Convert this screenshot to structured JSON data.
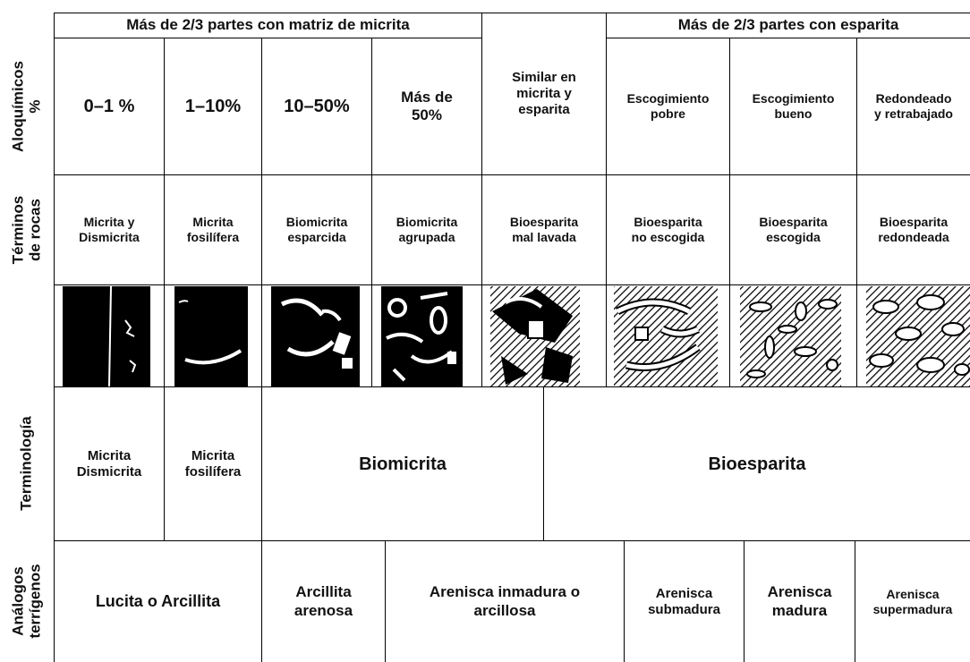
{
  "header": {
    "groups": [
      {
        "lines": [
          "Más de 2/3 partes con matriz de micrita"
        ]
      },
      {
        "lines": [
          "Más de 2/3 partes con esparita"
        ]
      }
    ]
  },
  "rows": [
    {
      "label": [
        "Aloquímicos",
        "%"
      ],
      "cells": [
        {
          "lines": [
            "0–1 %"
          ]
        },
        {
          "lines": [
            "1–10%"
          ]
        },
        {
          "lines": [
            "10–50%"
          ]
        },
        {
          "lines": [
            "Más de",
            "50%"
          ]
        },
        {
          "lines": [
            "Similar en",
            "micrita y",
            "esparita"
          ]
        },
        {
          "lines": [
            "Escogimiento",
            "pobre"
          ]
        },
        {
          "lines": [
            "Escogimiento",
            "bueno"
          ]
        },
        {
          "lines": [
            "Redondeado",
            "y retrabajado"
          ]
        }
      ]
    },
    {
      "label": [
        "Términos",
        "de rocas"
      ],
      "cells": [
        {
          "lines": [
            "Micrita y",
            "Dismicrita"
          ]
        },
        {
          "lines": [
            "Micrita",
            "fosilífera"
          ]
        },
        {
          "lines": [
            "Biomicrita",
            "esparcida"
          ]
        },
        {
          "lines": [
            "Biomicrita",
            "agrupada"
          ]
        },
        {
          "lines": [
            "Bioesparita",
            "mal lavada"
          ]
        },
        {
          "lines": [
            "Bioesparita",
            "no escogida"
          ]
        },
        {
          "lines": [
            "Bioesparita",
            "escogida"
          ]
        },
        {
          "lines": [
            "Bioesparita",
            "redondeada"
          ]
        }
      ]
    },
    {
      "label": [
        "Terminología"
      ],
      "cells": [
        {
          "lines": [
            "Micrita",
            "Dismicrita"
          ]
        },
        {
          "lines": [
            "Micrita",
            "fosilífera"
          ]
        },
        {
          "lines": [
            "Biomicrita"
          ]
        },
        {
          "lines": [
            "Bioesparita"
          ]
        }
      ]
    },
    {
      "label": [
        "Análogos",
        "terrígenos"
      ],
      "cells": [
        {
          "lines": [
            "Lucita o Arcillita"
          ]
        },
        {
          "lines": [
            "Arcillita",
            "arenosa"
          ]
        },
        {
          "lines": [
            "Arenisca inmadura o",
            "arcillosa"
          ]
        },
        {
          "lines": [
            "Arenisca",
            "submadura"
          ]
        },
        {
          "lines": [
            "Arenisca",
            "madura"
          ]
        },
        {
          "lines": [
            "Arenisca",
            "supermadura"
          ]
        }
      ]
    }
  ]
}
